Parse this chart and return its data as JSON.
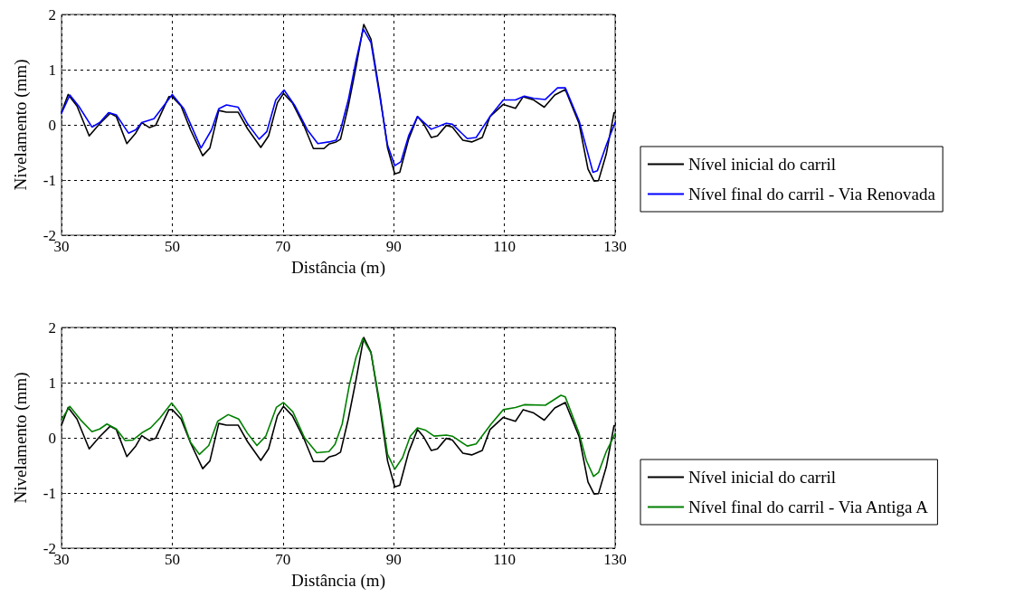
{
  "chart_data": [
    {
      "type": "line",
      "xlabel": "Distância (m)",
      "ylabel": "Nivelamento (mm)",
      "xlim": [
        30,
        130
      ],
      "ylim": [
        -2,
        2
      ],
      "xticks": [
        30,
        50,
        70,
        90,
        110,
        130
      ],
      "yticks": [
        -2,
        -1,
        0,
        1,
        2
      ],
      "grid": true,
      "legend": "right",
      "marker": "none",
      "line_style": "solid",
      "series": [
        {
          "name": "Nível inicial do carril",
          "color": "#000000",
          "x": [
            30,
            31.2,
            32.8,
            35,
            36.9,
            38.8,
            39.9,
            41.8,
            43.4,
            44.5,
            45.9,
            47,
            49.4,
            50,
            51.6,
            53.3,
            55.5,
            56.8,
            58.4,
            59.8,
            61.9,
            63.6,
            66,
            67.4,
            69,
            70.1,
            71.7,
            73.9,
            75.5,
            77.4,
            78.3,
            79.6,
            80.4,
            81.8,
            83.2,
            84.6,
            85.9,
            87.5,
            88.9,
            90.2,
            91.1,
            92.7,
            94.3,
            95.4,
            96.8,
            97.9,
            99.5,
            100.6,
            102.5,
            104.1,
            106,
            107.4,
            109.8,
            112,
            113.4,
            115.3,
            117.2,
            119.1,
            121,
            123.5,
            125.1,
            126.2,
            127,
            128.4,
            129.8,
            130
          ],
          "values": [
            0.23,
            0.55,
            0.34,
            -0.2,
            0.02,
            0.21,
            0.15,
            -0.34,
            -0.15,
            0.04,
            -0.05,
            -0.01,
            0.51,
            0.51,
            0.34,
            -0.09,
            -0.56,
            -0.42,
            0.26,
            0.23,
            0.23,
            -0.07,
            -0.41,
            -0.2,
            0.4,
            0.57,
            0.4,
            -0.04,
            -0.43,
            -0.43,
            -0.35,
            -0.31,
            -0.26,
            0.34,
            1.05,
            1.82,
            1.55,
            0.56,
            -0.42,
            -0.89,
            -0.86,
            -0.26,
            0.15,
            0.02,
            -0.23,
            -0.2,
            -0.01,
            -0.04,
            -0.28,
            -0.31,
            -0.23,
            0.15,
            0.37,
            0.3,
            0.51,
            0.45,
            0.32,
            0.54,
            0.64,
            0.02,
            -0.8,
            -1.02,
            -1.01,
            -0.53,
            0.22,
            0.22
          ]
        },
        {
          "name": "Nível final do carril - Via Renovada",
          "color": "#0000ff",
          "x": [
            30,
            31.5,
            33.1,
            35.5,
            36.9,
            38.5,
            39.9,
            42.1,
            43.4,
            44.5,
            46.7,
            50,
            52.1,
            55.2,
            57.1,
            58.4,
            59.8,
            61.9,
            63.6,
            65.7,
            67.1,
            68.7,
            70.2,
            72.2,
            74.4,
            76.3,
            78.3,
            79.6,
            80.4,
            81.8,
            83.2,
            84.5,
            85.9,
            87.5,
            88.9,
            90.2,
            91.3,
            92.7,
            94.3,
            96.8,
            99.5,
            100.6,
            103.3,
            104.9,
            107.4,
            109.8,
            112,
            113.6,
            115.3,
            117.4,
            119.6,
            121,
            123.5,
            126,
            126.8,
            128.4,
            130
          ],
          "values": [
            0.21,
            0.54,
            0.34,
            -0.04,
            0.04,
            0.22,
            0.18,
            -0.15,
            -0.09,
            0.04,
            0.11,
            0.55,
            0.29,
            -0.42,
            -0.09,
            0.29,
            0.36,
            0.32,
            0.02,
            -0.26,
            -0.12,
            0.45,
            0.63,
            0.34,
            -0.09,
            -0.34,
            -0.31,
            -0.28,
            -0.09,
            0.45,
            1.16,
            1.74,
            1.49,
            0.51,
            -0.37,
            -0.74,
            -0.67,
            -0.2,
            0.15,
            -0.08,
            0.03,
            0.01,
            -0.25,
            -0.23,
            0.15,
            0.45,
            0.45,
            0.52,
            0.48,
            0.46,
            0.67,
            0.67,
            0.07,
            -0.86,
            -0.83,
            -0.37,
            0.04
          ]
        }
      ]
    },
    {
      "type": "line",
      "xlabel": "Distância (m)",
      "ylabel": "Nivelamento (mm)",
      "xlim": [
        30,
        130
      ],
      "ylim": [
        -2,
        2
      ],
      "xticks": [
        30,
        50,
        70,
        90,
        110,
        130
      ],
      "yticks": [
        -2,
        -1,
        0,
        1,
        2
      ],
      "grid": true,
      "legend": "right",
      "marker": "none",
      "line_style": "solid",
      "series": [
        {
          "name": "Nível inicial do carril",
          "color": "#000000",
          "x": [
            30,
            31.2,
            32.8,
            35,
            36.9,
            38.8,
            39.9,
            41.8,
            43.4,
            44.5,
            45.9,
            47,
            49.4,
            50,
            51.6,
            53.3,
            55.5,
            56.8,
            58.4,
            59.8,
            61.9,
            63.6,
            66,
            67.4,
            69,
            70.1,
            71.7,
            73.9,
            75.5,
            77.4,
            78.3,
            79.6,
            80.4,
            81.8,
            83.2,
            84.6,
            85.9,
            87.5,
            88.9,
            90.2,
            91.1,
            92.7,
            94.3,
            95.4,
            96.8,
            97.9,
            99.5,
            100.6,
            102.5,
            104.1,
            106,
            107.4,
            109.8,
            112,
            113.4,
            115.3,
            117.2,
            119.1,
            121,
            123.5,
            125.1,
            126.2,
            127,
            128.4,
            129.8,
            130
          ],
          "values": [
            0.23,
            0.55,
            0.34,
            -0.2,
            0.02,
            0.21,
            0.15,
            -0.34,
            -0.15,
            0.04,
            -0.05,
            -0.01,
            0.51,
            0.51,
            0.34,
            -0.09,
            -0.56,
            -0.42,
            0.26,
            0.23,
            0.23,
            -0.07,
            -0.41,
            -0.2,
            0.4,
            0.57,
            0.4,
            -0.04,
            -0.43,
            -0.43,
            -0.35,
            -0.31,
            -0.26,
            0.34,
            1.05,
            1.82,
            1.55,
            0.56,
            -0.42,
            -0.89,
            -0.86,
            -0.26,
            0.15,
            0.02,
            -0.23,
            -0.2,
            -0.01,
            -0.04,
            -0.28,
            -0.31,
            -0.23,
            0.15,
            0.37,
            0.3,
            0.51,
            0.45,
            0.32,
            0.54,
            0.64,
            0.02,
            -0.8,
            -1.02,
            -1.01,
            -0.53,
            0.22,
            0.22
          ]
        },
        {
          "name": "Nível final do carril - Via Antiga A",
          "color": "#008000",
          "x": [
            30,
            31.5,
            33.4,
            35.5,
            36.9,
            38.2,
            39.9,
            41.5,
            42.9,
            44.5,
            46.1,
            47.8,
            49.9,
            51.6,
            53.3,
            54.9,
            56.6,
            58.2,
            60.1,
            62,
            63.6,
            65.3,
            66.9,
            68.8,
            70.1,
            71.8,
            73.9,
            76.1,
            78.3,
            79.4,
            80.7,
            82,
            83.2,
            84.4,
            85.9,
            87.5,
            88.9,
            90.2,
            91.6,
            93,
            94.3,
            95.7,
            97.3,
            99.5,
            100.6,
            103.3,
            104.9,
            107.6,
            109.8,
            112,
            113.6,
            117.4,
            120.2,
            121,
            123.5,
            124.8,
            126.1,
            127,
            128.4,
            130
          ],
          "values": [
            0.33,
            0.57,
            0.33,
            0.11,
            0.16,
            0.25,
            0.16,
            -0.05,
            -0.04,
            0.09,
            0.18,
            0.36,
            0.63,
            0.41,
            -0.08,
            -0.3,
            -0.14,
            0.3,
            0.42,
            0.34,
            0.08,
            -0.14,
            0.03,
            0.55,
            0.64,
            0.47,
            0,
            -0.27,
            -0.25,
            -0.12,
            0.25,
            0.96,
            1.46,
            1.8,
            1.54,
            0.63,
            -0.3,
            -0.57,
            -0.36,
            0.03,
            0.18,
            0.14,
            0.03,
            0.05,
            0.03,
            -0.15,
            -0.11,
            0.25,
            0.51,
            0.55,
            0.6,
            0.59,
            0.77,
            0.74,
            0.08,
            -0.41,
            -0.7,
            -0.63,
            -0.25,
            0.07
          ]
        }
      ]
    }
  ]
}
